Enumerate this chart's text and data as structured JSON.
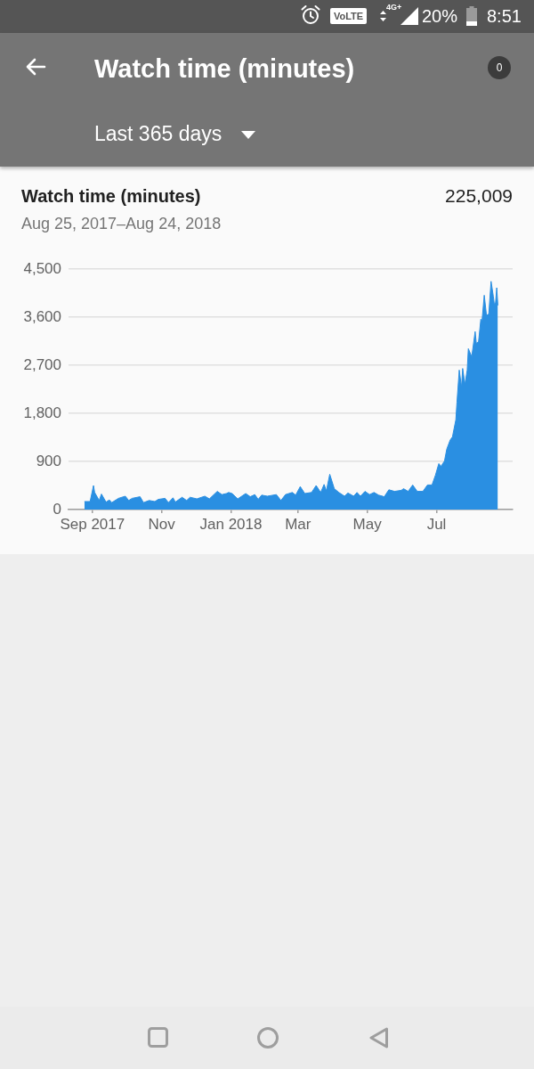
{
  "chart_data": {
    "type": "area",
    "title": "Watch time (minutes)",
    "subtitle": "Aug 25, 2017–Aug 24, 2018",
    "annotations": [
      "Watch time (minutes)",
      "Last 365 days",
      "225,009",
      "0",
      "20%",
      "8:51",
      "VoLTE",
      "4G+"
    ],
    "x": [
      "2017-08-25",
      "2017-08-30",
      "2017-09-02",
      "2017-09-03",
      "2017-09-07",
      "2017-09-09",
      "2017-09-13",
      "2017-09-16",
      "2017-09-18",
      "2017-09-24",
      "2017-09-30",
      "2017-10-03",
      "2017-10-06",
      "2017-10-13",
      "2017-10-16",
      "2017-10-21",
      "2017-10-26",
      "2017-10-29",
      "2017-11-04",
      "2017-11-07",
      "2017-11-11",
      "2017-11-13",
      "2017-11-19",
      "2017-11-23",
      "2017-11-26",
      "2017-12-02",
      "2017-12-09",
      "2017-12-13",
      "2017-12-20",
      "2017-12-24",
      "2017-12-28",
      "2017-12-30",
      "2018-01-02",
      "2018-01-07",
      "2018-01-14",
      "2018-01-18",
      "2018-01-22",
      "2018-01-25",
      "2018-01-28",
      "2018-02-02",
      "2018-02-10",
      "2018-02-14",
      "2018-02-18",
      "2018-02-24",
      "2018-02-27",
      "2018-03-03",
      "2018-03-07",
      "2018-03-13",
      "2018-03-17",
      "2018-03-21",
      "2018-03-24",
      "2018-03-26",
      "2018-03-29",
      "2018-04-02",
      "2018-04-06",
      "2018-04-11",
      "2018-04-14",
      "2018-04-19",
      "2018-04-22",
      "2018-04-25",
      "2018-04-29",
      "2018-05-03",
      "2018-05-07",
      "2018-05-11",
      "2018-05-16",
      "2018-05-20",
      "2018-05-25",
      "2018-05-31",
      "2018-06-02",
      "2018-06-06",
      "2018-06-10",
      "2018-06-14",
      "2018-06-19",
      "2018-06-23",
      "2018-06-27",
      "2018-06-30",
      "2018-07-03",
      "2018-07-05",
      "2018-07-08",
      "2018-07-10",
      "2018-07-13",
      "2018-07-15",
      "2018-07-18",
      "2018-07-19",
      "2018-07-21",
      "2018-07-23",
      "2018-07-24",
      "2018-07-26",
      "2018-07-28",
      "2018-07-29",
      "2018-08-01",
      "2018-08-04",
      "2018-08-05",
      "2018-08-07",
      "2018-08-09",
      "2018-08-10",
      "2018-08-12",
      "2018-08-14",
      "2018-08-16",
      "2018-08-18",
      "2018-08-20",
      "2018-08-21",
      "2018-08-22",
      "2018-08-23",
      "2018-08-24"
    ],
    "values": [
      150,
      150,
      450,
      320,
      170,
      290,
      140,
      180,
      130,
      210,
      250,
      170,
      210,
      240,
      130,
      170,
      150,
      190,
      210,
      130,
      220,
      140,
      230,
      170,
      230,
      200,
      250,
      200,
      340,
      280,
      300,
      320,
      300,
      200,
      300,
      240,
      280,
      190,
      270,
      250,
      280,
      170,
      280,
      320,
      270,
      430,
      300,
      320,
      450,
      320,
      470,
      350,
      660,
      390,
      320,
      250,
      310,
      250,
      320,
      250,
      340,
      280,
      320,
      270,
      240,
      370,
      340,
      360,
      390,
      340,
      460,
      340,
      340,
      460,
      460,
      640,
      860,
      810,
      910,
      1130,
      1300,
      1360,
      1680,
      2010,
      2610,
      2280,
      2640,
      2340,
      2610,
      3010,
      2860,
      3330,
      3110,
      3140,
      3560,
      3520,
      4010,
      3630,
      3660,
      4270,
      3990,
      3820,
      3880,
      4150,
      3820
    ],
    "color": "#2a8fe2",
    "xlim": [
      "2017-08-11",
      "2018-09-06"
    ],
    "xticks": [
      {
        "value": "2017-09-01",
        "label": "Sep 2017"
      },
      {
        "value": "2017-11-01",
        "label": "Nov"
      },
      {
        "value": "2018-01-01",
        "label": "Jan 2018"
      },
      {
        "value": "2018-03-01",
        "label": "Mar"
      },
      {
        "value": "2018-05-01",
        "label": "May"
      },
      {
        "value": "2018-07-01",
        "label": "Jul"
      }
    ],
    "ylim": [
      0,
      4500
    ],
    "yticks": [
      {
        "value": 0,
        "label": "0"
      },
      {
        "value": 900,
        "label": "900"
      },
      {
        "value": 1800,
        "label": "1,800"
      },
      {
        "value": 2700,
        "label": "2,700"
      },
      {
        "value": 3600,
        "label": "3,600"
      },
      {
        "value": 4500,
        "label": "4,500"
      }
    ],
    "grid": "y"
  }
}
